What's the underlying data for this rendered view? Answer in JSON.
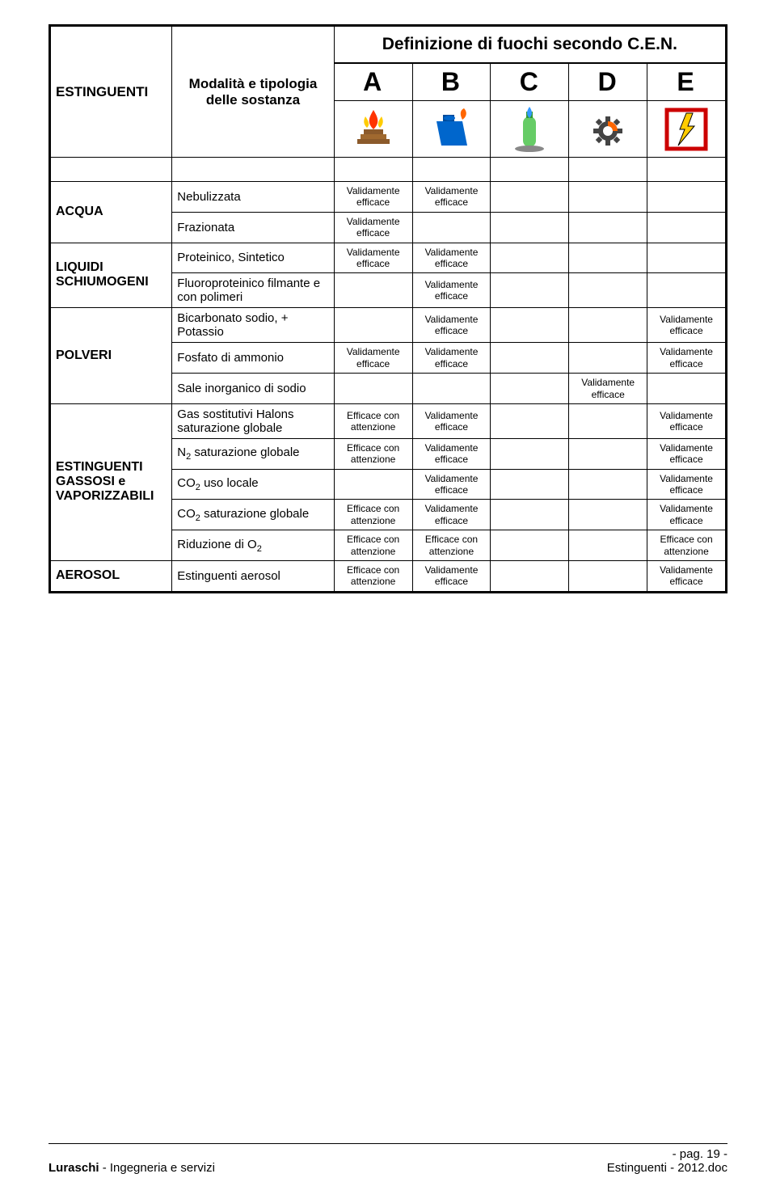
{
  "header": {
    "title": "Definizione di fuochi secondo C.E.N.",
    "col_estinguenti": "ESTINGUENTI",
    "col_modalita": "Modalità e tipologia delle sostanza",
    "letters": [
      "A",
      "B",
      "C",
      "D",
      "E"
    ]
  },
  "effLabels": {
    "valid": "Validamente efficace",
    "attn": "Efficace con attenzione"
  },
  "categories": [
    {
      "name": "ACQUA",
      "rows": [
        {
          "mod": "Nebulizzata",
          "cells": [
            "valid",
            "valid",
            "",
            "",
            ""
          ]
        },
        {
          "mod": "Frazionata",
          "cells": [
            "valid",
            "",
            "",
            "",
            ""
          ]
        }
      ]
    },
    {
      "name": "LIQUIDI SCHIUMOGENI",
      "rows": [
        {
          "mod": "Proteinico, Sintetico",
          "cells": [
            "valid",
            "valid",
            "",
            "",
            ""
          ]
        },
        {
          "mod": "Fluoroproteinico filmante e con polimeri",
          "cells": [
            "",
            "valid",
            "",
            "",
            ""
          ]
        }
      ]
    },
    {
      "name": "POLVERI",
      "preRows": [
        {
          "mod": "Bicarbonato sodio, + Potassio",
          "cells": [
            "",
            "valid",
            "",
            "",
            "valid"
          ]
        }
      ],
      "rows": [
        {
          "mod": "Fosfato di ammonio",
          "cells": [
            "valid",
            "valid",
            "",
            "",
            "valid"
          ]
        }
      ],
      "postRows": [
        {
          "mod": "Sale inorganico di sodio",
          "cells": [
            "",
            "",
            "",
            "valid",
            ""
          ]
        }
      ]
    },
    {
      "name": "ESTINGUENTI GASSOSI e VAPORIZZABILI",
      "preRows": [
        {
          "mod": "Gas sostitutivi Halons saturazione globale",
          "cells": [
            "attn",
            "valid",
            "",
            "",
            "valid"
          ]
        }
      ],
      "rows": [
        {
          "mod": "N₂ saturazione globale",
          "cells": [
            "attn",
            "valid",
            "",
            "",
            "valid"
          ]
        },
        {
          "mod": "CO₂ uso locale",
          "cells": [
            "",
            "valid",
            "",
            "",
            "valid"
          ]
        }
      ],
      "postRows": [
        {
          "mod": "CO₂ saturazione globale",
          "cells": [
            "attn",
            "valid",
            "",
            "",
            "valid"
          ]
        },
        {
          "mod": "Riduzione di O₂",
          "cells": [
            "attn",
            "attn",
            "",
            "",
            "attn"
          ]
        }
      ]
    },
    {
      "name": "AEROSOL",
      "rows": [
        {
          "mod": "Estinguenti aerosol",
          "cells": [
            "attn",
            "valid",
            "",
            "",
            "valid"
          ]
        }
      ]
    }
  ],
  "footer": {
    "page": "- pag. 19 -",
    "left_bold": "Luraschi",
    "left_rest": " - Ingegneria e servizi",
    "right": "Estinguenti - 2012.doc"
  },
  "colors": {
    "iconA_wood": "#8b5a2b",
    "iconA_fire1": "#ff3300",
    "iconA_fire2": "#ffcc00",
    "iconB_can": "#0066cc",
    "iconB_flame": "#ff6600",
    "iconC_tank": "#66cc66",
    "iconC_flame": "#3399ff",
    "iconD_gear": "#444444",
    "iconD_crescent": "#ff6600",
    "iconE_bolt": "#ffcc00",
    "iconE_ring": "#cc0000"
  },
  "layout": {
    "col_widths_pct": [
      18,
      24,
      11.6,
      11.6,
      11.6,
      11.6,
      11.6
    ]
  }
}
